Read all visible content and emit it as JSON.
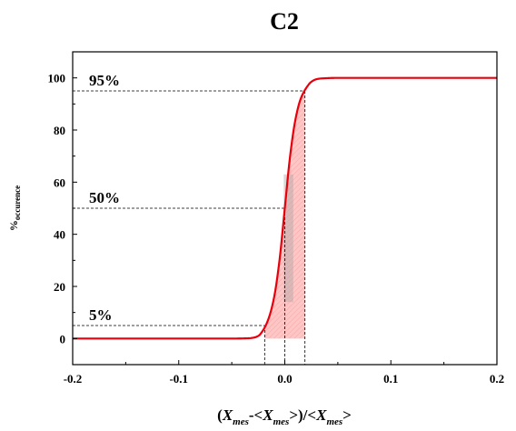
{
  "chart_data": {
    "type": "line",
    "title": "C2",
    "xlabel": "(X_mes-<X_mes>)/<X_mes>",
    "ylabel": "%_occurence",
    "xlim": [
      -0.2,
      0.2
    ],
    "ylim": [
      -10,
      110
    ],
    "xticks": [
      -0.2,
      -0.1,
      0.0,
      0.1,
      0.2
    ],
    "xtick_labels": [
      "-0.2",
      "-0.1",
      "0.0",
      "0.1",
      "0.2"
    ],
    "yticks": [
      0,
      20,
      40,
      60,
      80,
      100
    ],
    "ytick_labels": [
      "0",
      "20",
      "40",
      "60",
      "80",
      "100"
    ],
    "series": [
      {
        "color": "#e8000b",
        "x": [
          -0.2,
          -0.1,
          -0.05,
          -0.035,
          -0.03,
          -0.025,
          -0.02,
          -0.015,
          -0.01,
          -0.005,
          0.0,
          0.005,
          0.01,
          0.015,
          0.02,
          0.025,
          0.03,
          0.035,
          0.05,
          0.1,
          0.2
        ],
        "y": [
          0,
          0,
          0,
          0.1,
          0.3,
          1.0,
          3.5,
          8.0,
          16.0,
          30.0,
          50.0,
          70.0,
          84.0,
          92.0,
          96.0,
          98.5,
          99.5,
          99.8,
          100,
          100,
          100
        ]
      }
    ],
    "reference_levels": [
      {
        "label": "5%",
        "y": 5,
        "x": -0.019
      },
      {
        "label": "50%",
        "y": 50,
        "x": 0.0
      },
      {
        "label": "95%",
        "y": 95,
        "x": 0.019
      }
    ],
    "shaded_interval": [
      -0.019,
      0.019
    ],
    "shade_color": "#ffb3b3",
    "grid": false,
    "legend": "none"
  }
}
